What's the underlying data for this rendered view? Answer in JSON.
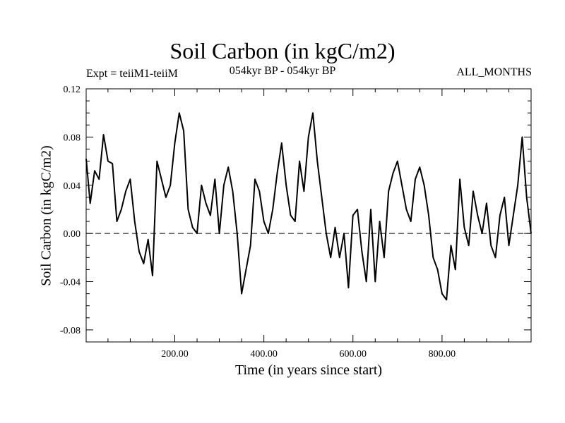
{
  "chart_data": {
    "type": "line",
    "title": "Soil Carbon (in kgC/m2)",
    "left_label": "Expt = teiiM1-teiiM",
    "center_label": "054kyr BP - 054kyr BP",
    "right_label": "ALL_MONTHS",
    "xlabel": "Time (in years since start)",
    "ylabel": "Soil Carbon (in kgC/m2)",
    "xlim": [
      1,
      1000
    ],
    "ylim": [
      -0.09,
      0.12
    ],
    "xticks": [
      200,
      400,
      600,
      800
    ],
    "xtick_labels": [
      "200.00",
      "400.00",
      "600.00",
      "800.00"
    ],
    "yticks": [
      0.12,
      0.08,
      0.04,
      0.0,
      -0.04,
      -0.08
    ],
    "ytick_labels": [
      "0.12",
      "0.08",
      "0.04",
      "0.00",
      "-0.04",
      "-0.08"
    ],
    "reference_line": {
      "y": 0.0,
      "style": "dashed"
    },
    "grid": false,
    "series": [
      {
        "color": "#000000",
        "x": [
          1,
          10,
          20,
          30,
          40,
          50,
          60,
          70,
          80,
          90,
          100,
          110,
          120,
          130,
          140,
          150,
          160,
          170,
          180,
          190,
          200,
          210,
          220,
          230,
          240,
          250,
          260,
          270,
          280,
          290,
          300,
          310,
          320,
          330,
          340,
          350,
          360,
          370,
          380,
          390,
          400,
          410,
          420,
          430,
          440,
          450,
          460,
          470,
          480,
          490,
          500,
          510,
          520,
          530,
          540,
          550,
          560,
          570,
          580,
          590,
          600,
          610,
          620,
          630,
          640,
          650,
          660,
          670,
          680,
          690,
          700,
          710,
          720,
          730,
          740,
          750,
          760,
          770,
          780,
          790,
          800,
          810,
          820,
          830,
          840,
          850,
          860,
          870,
          880,
          890,
          900,
          910,
          920,
          930,
          940,
          950,
          960,
          970,
          980,
          990,
          1000
        ],
        "values": [
          0.062,
          0.025,
          0.052,
          0.045,
          0.082,
          0.06,
          0.058,
          0.01,
          0.02,
          0.035,
          0.045,
          0.01,
          -0.015,
          -0.025,
          -0.005,
          -0.035,
          0.06,
          0.045,
          0.03,
          0.04,
          0.075,
          0.1,
          0.085,
          0.02,
          0.005,
          0.0,
          0.04,
          0.025,
          0.015,
          0.045,
          0.0,
          0.04,
          0.055,
          0.035,
          0.0,
          -0.05,
          -0.03,
          -0.01,
          0.045,
          0.035,
          0.01,
          0.0,
          0.02,
          0.05,
          0.075,
          0.04,
          0.015,
          0.01,
          0.06,
          0.035,
          0.08,
          0.1,
          0.06,
          0.03,
          0.0,
          -0.02,
          0.005,
          -0.02,
          0.0,
          -0.045,
          0.015,
          0.02,
          -0.015,
          -0.04,
          0.02,
          -0.04,
          0.01,
          -0.02,
          0.035,
          0.05,
          0.06,
          0.04,
          0.02,
          0.01,
          0.045,
          0.055,
          0.04,
          0.015,
          -0.02,
          -0.03,
          -0.05,
          -0.055,
          -0.01,
          -0.03,
          0.045,
          0.005,
          -0.01,
          0.035,
          0.015,
          0.0,
          0.025,
          -0.01,
          -0.02,
          0.015,
          0.03,
          -0.01,
          0.015,
          0.04,
          0.08,
          0.03,
          0.0
        ]
      }
    ]
  }
}
